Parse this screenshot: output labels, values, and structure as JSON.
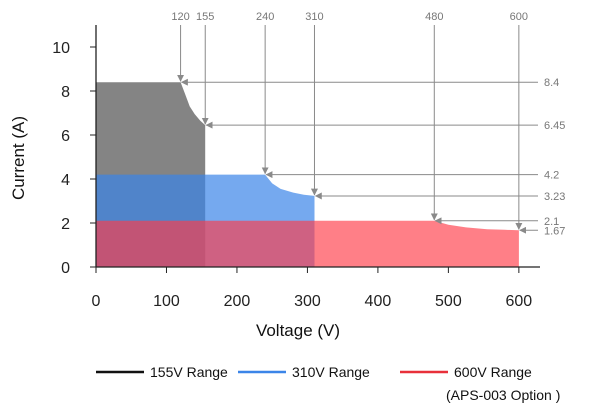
{
  "chart_data": {
    "type": "area",
    "xlabel": "Voltage (V)",
    "ylabel": "Current (A)",
    "xlim": [
      0,
      630
    ],
    "ylim": [
      0,
      11
    ],
    "x_ticks": [
      0,
      100,
      200,
      300,
      400,
      500,
      600
    ],
    "y_ticks": [
      0,
      2,
      4,
      6,
      8,
      10
    ],
    "grid": false,
    "series": [
      {
        "name": "155V Range",
        "color": "#6e6e6e",
        "fill_opacity": 0.85,
        "points": [
          [
            0,
            8.4
          ],
          [
            120,
            8.4
          ],
          [
            126,
            7.9
          ],
          [
            133,
            7.3
          ],
          [
            140,
            6.95
          ],
          [
            148,
            6.65
          ],
          [
            155,
            6.45
          ],
          [
            155,
            0
          ]
        ]
      },
      {
        "name": "310V Range",
        "color": "#3b85e8",
        "fill_opacity": 0.7,
        "points": [
          [
            0,
            4.2
          ],
          [
            240,
            4.2
          ],
          [
            250,
            3.8
          ],
          [
            262,
            3.55
          ],
          [
            280,
            3.38
          ],
          [
            295,
            3.28
          ],
          [
            310,
            3.23
          ],
          [
            310,
            0
          ]
        ]
      },
      {
        "name": "600V Range",
        "color": "#ff3b47",
        "fill_opacity": 0.65,
        "points": [
          [
            0,
            2.1
          ],
          [
            480,
            2.1
          ],
          [
            500,
            1.92
          ],
          [
            525,
            1.8
          ],
          [
            555,
            1.72
          ],
          [
            580,
            1.69
          ],
          [
            600,
            1.67
          ],
          [
            600,
            0
          ]
        ]
      }
    ],
    "annotations": {
      "voltage_markers": [
        {
          "x": 120,
          "label": "120",
          "y": 8.4
        },
        {
          "x": 155,
          "label": "155",
          "y": 6.45
        },
        {
          "x": 240,
          "label": "240",
          "y": 4.2
        },
        {
          "x": 310,
          "label": "310",
          "y": 3.23
        },
        {
          "x": 480,
          "label": "480",
          "y": 2.1
        },
        {
          "x": 600,
          "label": "600",
          "y": 1.67
        }
      ],
      "current_markers": [
        {
          "y": 8.4,
          "label": "8.4",
          "x": 120
        },
        {
          "y": 6.45,
          "label": "6.45",
          "x": 155
        },
        {
          "y": 4.2,
          "label": "4.2",
          "x": 240
        },
        {
          "y": 3.23,
          "label": "3.23",
          "x": 310
        },
        {
          "y": 2.1,
          "label": "2.1",
          "x": 480
        },
        {
          "y": 1.67,
          "label": "1.67",
          "x": 600
        }
      ]
    },
    "legend": {
      "placement": "bottom",
      "items": [
        {
          "label": "155V Range",
          "color": "#111111"
        },
        {
          "label": "310V Range",
          "color": "#3b85e8"
        },
        {
          "label": "600V Range",
          "color": "#e8303a",
          "note": "(APS-003 Option )"
        }
      ]
    }
  }
}
